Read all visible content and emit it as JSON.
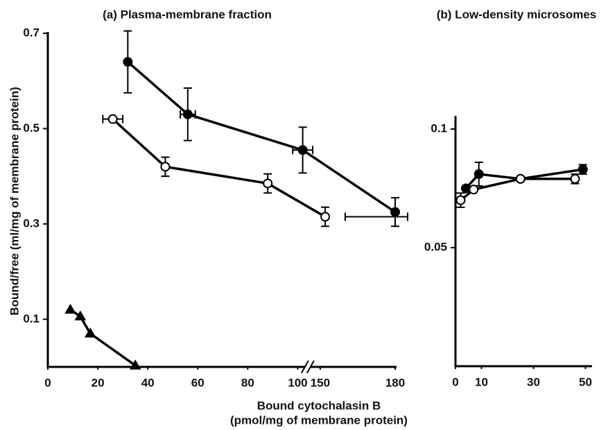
{
  "chart_data": [
    {
      "type": "line",
      "title": "(a) Plasma-membrane fraction",
      "ylabel": "Bound/free (ml/mg of membrane protein)",
      "xlim": [
        0,
        180
      ],
      "xbreak": [
        104,
        145
      ],
      "xticks": [
        0,
        20,
        40,
        60,
        80,
        100,
        150,
        180
      ],
      "ylim": [
        0,
        0.7
      ],
      "yticks": [
        0.1,
        0.3,
        0.5,
        0.7
      ],
      "series": [
        {
          "color": "#000000",
          "marker": "circle",
          "filled": true,
          "x": [
            32,
            56,
            102,
            180
          ],
          "values": [
            0.64,
            0.53,
            0.455,
            0.325
          ],
          "yerr": [
            0.065,
            0.055,
            0.048,
            0.03
          ],
          "xerr": [
            null,
            3,
            4,
            null
          ]
        },
        {
          "color": "#000000",
          "marker": "circle",
          "filled": false,
          "x": [
            26,
            47,
            88,
            152
          ],
          "values": [
            0.52,
            0.42,
            0.385,
            0.315
          ],
          "yerr": [
            null,
            0.02,
            0.02,
            0.02
          ],
          "xerr": [
            4,
            null,
            null,
            8
          ]
        },
        {
          "color": "#000000",
          "marker": "triangle",
          "filled": true,
          "x": [
            9,
            13,
            17,
            35
          ],
          "values": [
            0.12,
            0.106,
            0.07,
            0.003
          ],
          "yerr": [
            null,
            null,
            null,
            null
          ],
          "xerr": [
            null,
            null,
            null,
            null
          ]
        }
      ]
    },
    {
      "type": "line",
      "title": "(b) Low-density microsomes",
      "xlim": [
        0,
        52
      ],
      "xticks": [
        0,
        10,
        30,
        50
      ],
      "ylim": [
        0,
        0.105
      ],
      "yticks": [
        0.05,
        0.1
      ],
      "series": [
        {
          "color": "#000000",
          "marker": "circle",
          "filled": true,
          "x": [
            4,
            9,
            25,
            49
          ],
          "values": [
            0.075,
            0.081,
            0.079,
            0.083
          ],
          "yerr": [
            null,
            0.005,
            null,
            0.002
          ],
          "xerr": [
            null,
            null,
            null,
            null
          ]
        },
        {
          "color": "#000000",
          "marker": "circle",
          "filled": false,
          "x": [
            2,
            7,
            25,
            46
          ],
          "values": [
            0.07,
            0.0745,
            0.079,
            0.079
          ],
          "yerr": [
            0.003,
            null,
            null,
            0.002
          ],
          "xerr": [
            null,
            null,
            null,
            null
          ]
        }
      ]
    }
  ],
  "xlabel": [
    "Bound cytochalasin B",
    "(pmol/mg of membrane protein)"
  ]
}
